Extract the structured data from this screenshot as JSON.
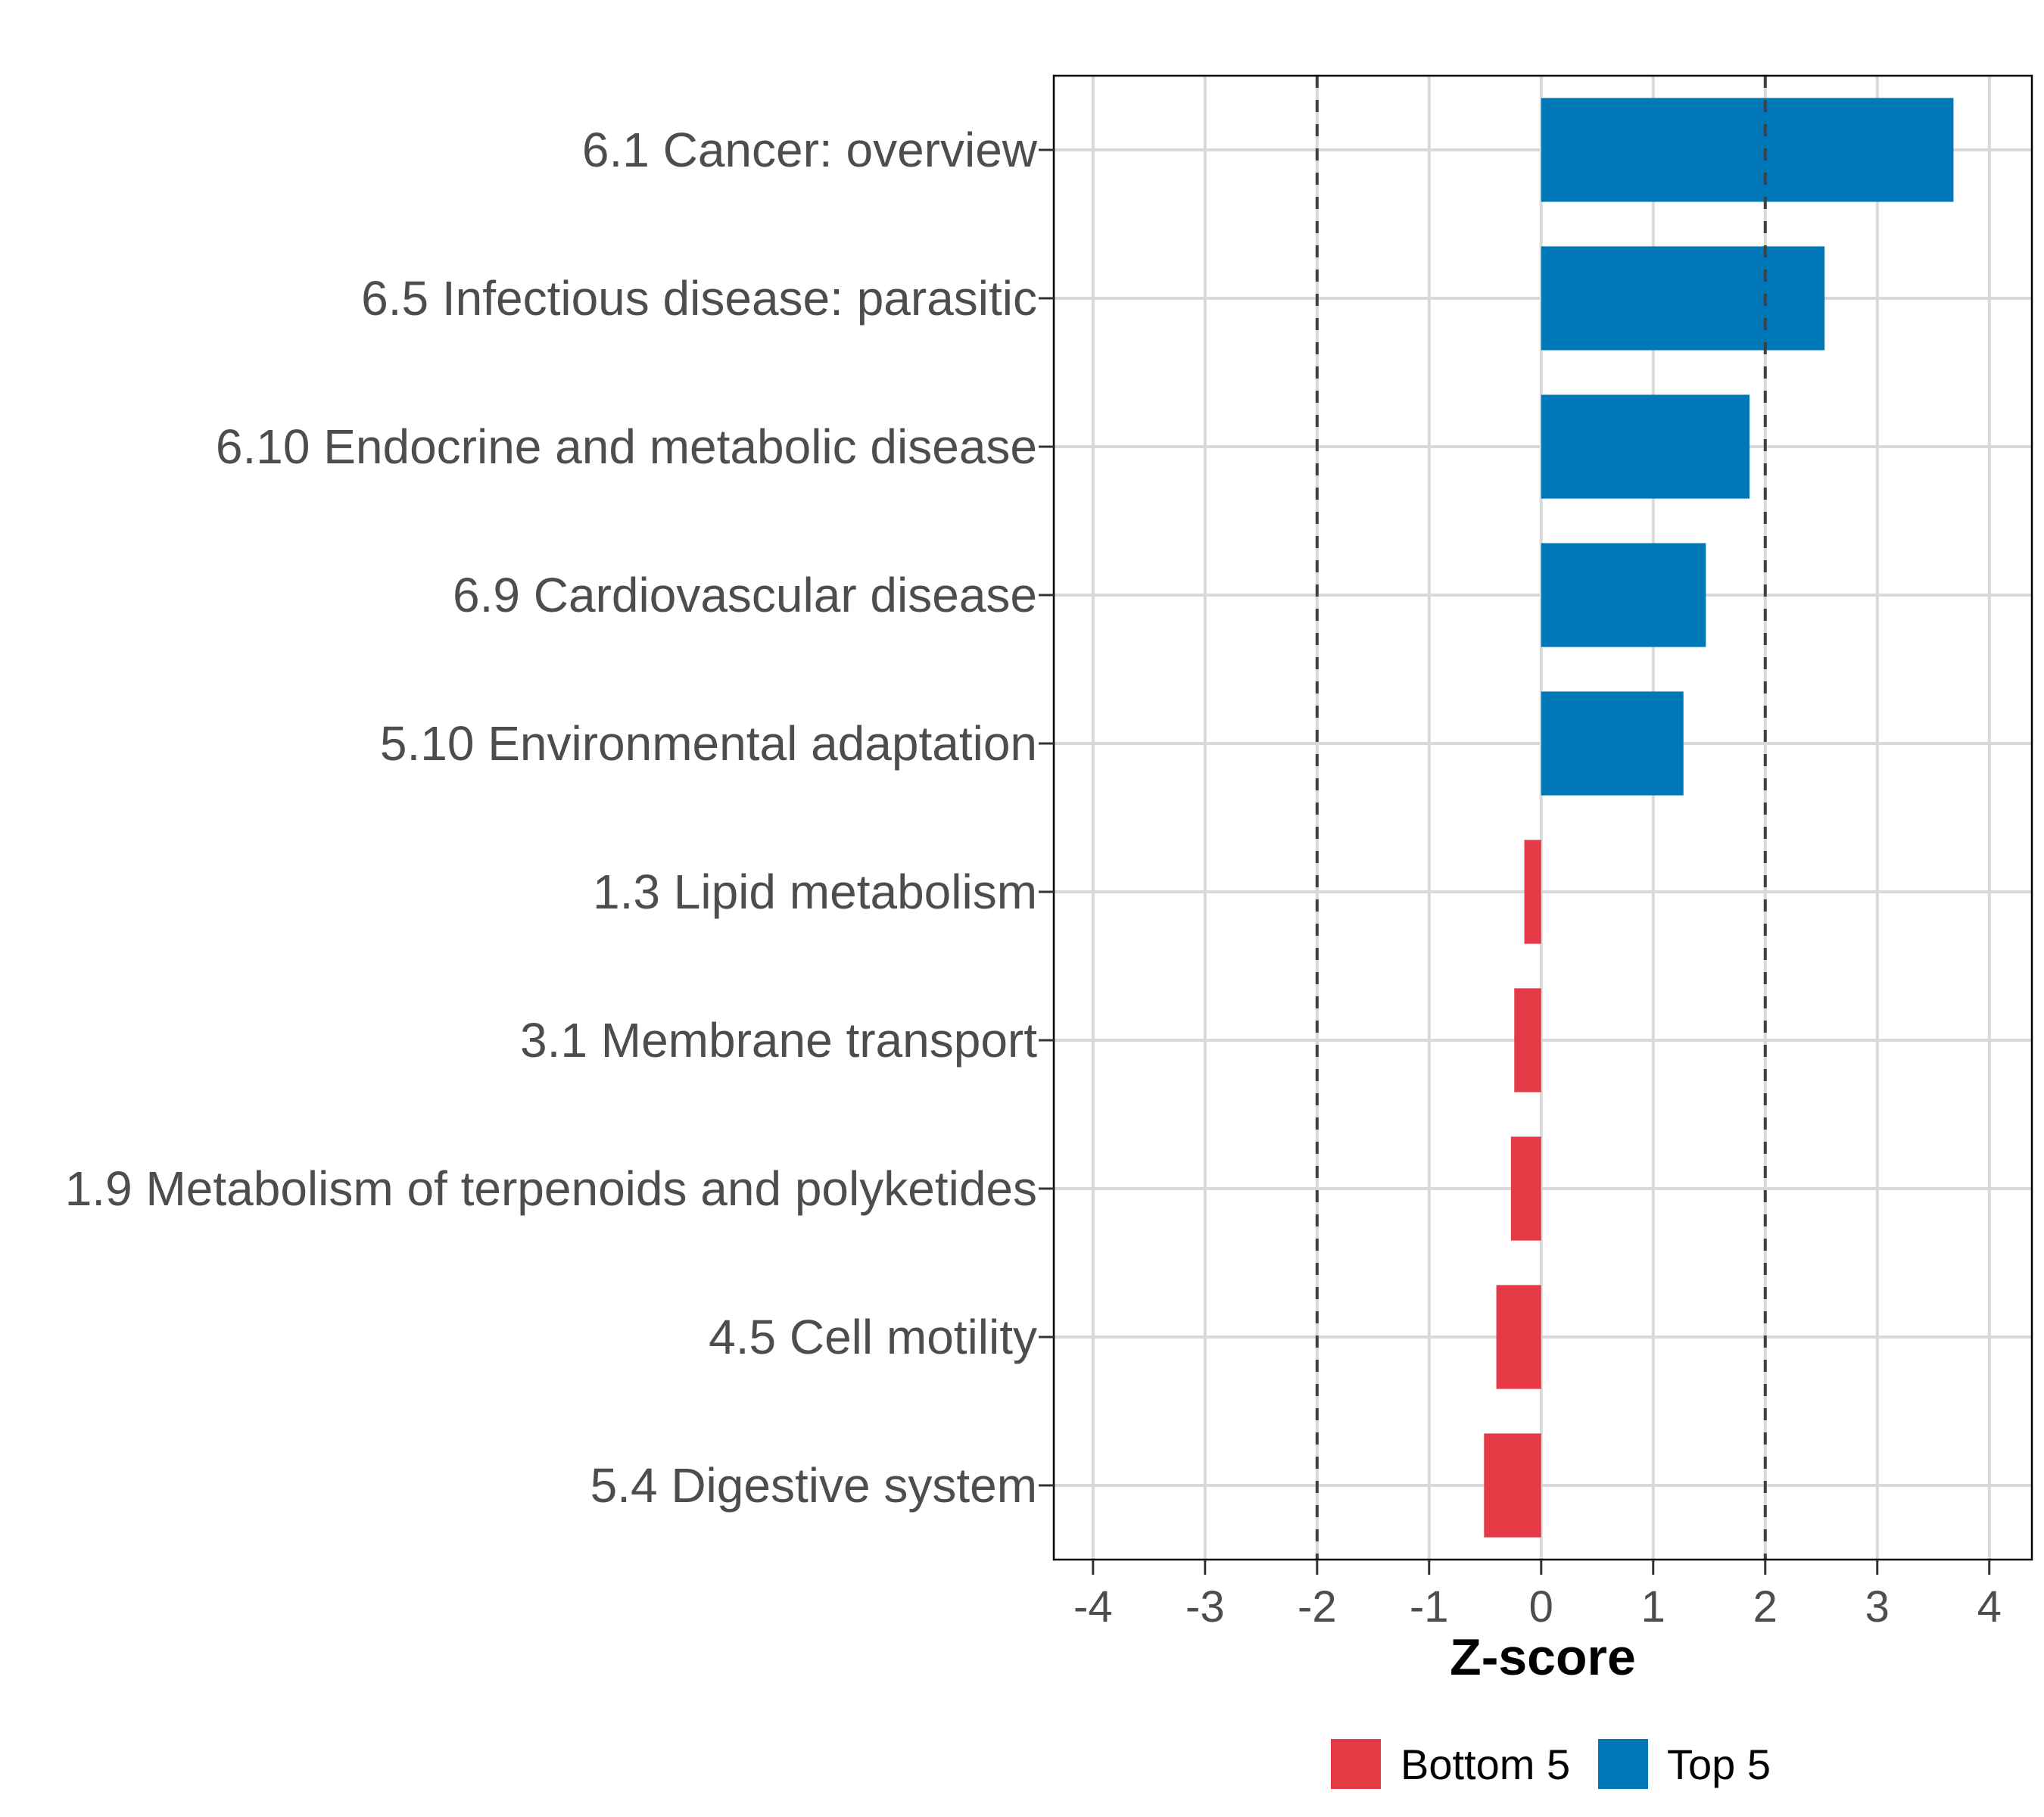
{
  "chart_data": {
    "type": "bar",
    "orientation": "horizontal",
    "categories": [
      "6.1 Cancer: overview",
      "6.5 Infectious disease: parasitic",
      "6.10 Endocrine and metabolic disease",
      "6.9 Cardiovascular disease",
      "5.10 Environmental adaptation",
      "1.3 Lipid metabolism",
      "3.1 Membrane transport",
      "1.9 Metabolism of terpenoids and polyketides",
      "4.5 Cell motility",
      "5.4 Digestive system"
    ],
    "values": [
      3.68,
      2.53,
      1.86,
      1.47,
      1.27,
      -0.15,
      -0.24,
      -0.27,
      -0.4,
      -0.51
    ],
    "groups": [
      "Top 5",
      "Top 5",
      "Top 5",
      "Top 5",
      "Top 5",
      "Bottom 5",
      "Bottom 5",
      "Bottom 5",
      "Bottom 5",
      "Bottom 5"
    ],
    "xlabel": "Z-score",
    "ylabel": "",
    "xlim": [
      -4.35,
      4.38
    ],
    "xticks": [
      -4,
      -3,
      -2,
      -1,
      0,
      1,
      2,
      3,
      4
    ],
    "reference_lines": [
      -2,
      2
    ],
    "grid": true,
    "legend": {
      "placement": "bottom",
      "entries": [
        {
          "label": "Bottom 5",
          "color": "#E63946"
        },
        {
          "label": "Top 5",
          "color": "#0077B6"
        }
      ]
    },
    "colors": {
      "Top 5": "#0077B6",
      "Bottom 5": "#E63946"
    }
  }
}
